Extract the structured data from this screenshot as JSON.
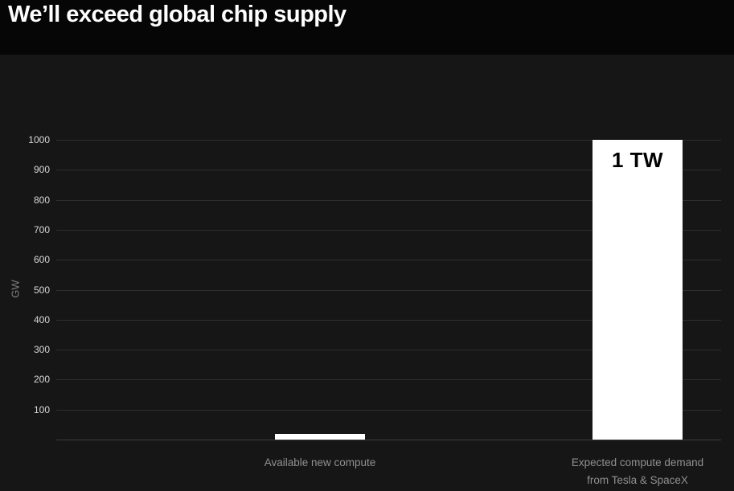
{
  "header": {
    "title": "We’ll exceed global chip supply"
  },
  "chart_data": {
    "type": "bar",
    "title": "We’ll exceed global chip supply",
    "xlabel": "",
    "ylabel": "GW",
    "ylim": [
      0,
      1000
    ],
    "yticks": [
      100,
      200,
      300,
      400,
      500,
      600,
      700,
      800,
      900,
      1000
    ],
    "grid": true,
    "legend": false,
    "categories": [
      "Available new compute",
      "Expected compute demand from Tesla & SpaceX"
    ],
    "category_lines": [
      [
        "Available new compute"
      ],
      [
        "Expected compute demand",
        "from Tesla & SpaceX"
      ]
    ],
    "values": [
      20,
      1000
    ],
    "bar_value_labels": [
      "",
      "1 TW"
    ],
    "colors": {
      "bar": "#ffffff",
      "bar_label_text": "#000000",
      "grid": "#2e2e2e",
      "tick_text": "#d8d8d8",
      "category_text": "#909090",
      "panel_bg": "#161616",
      "page_bg": "#060606",
      "title_text": "#ffffff"
    }
  }
}
